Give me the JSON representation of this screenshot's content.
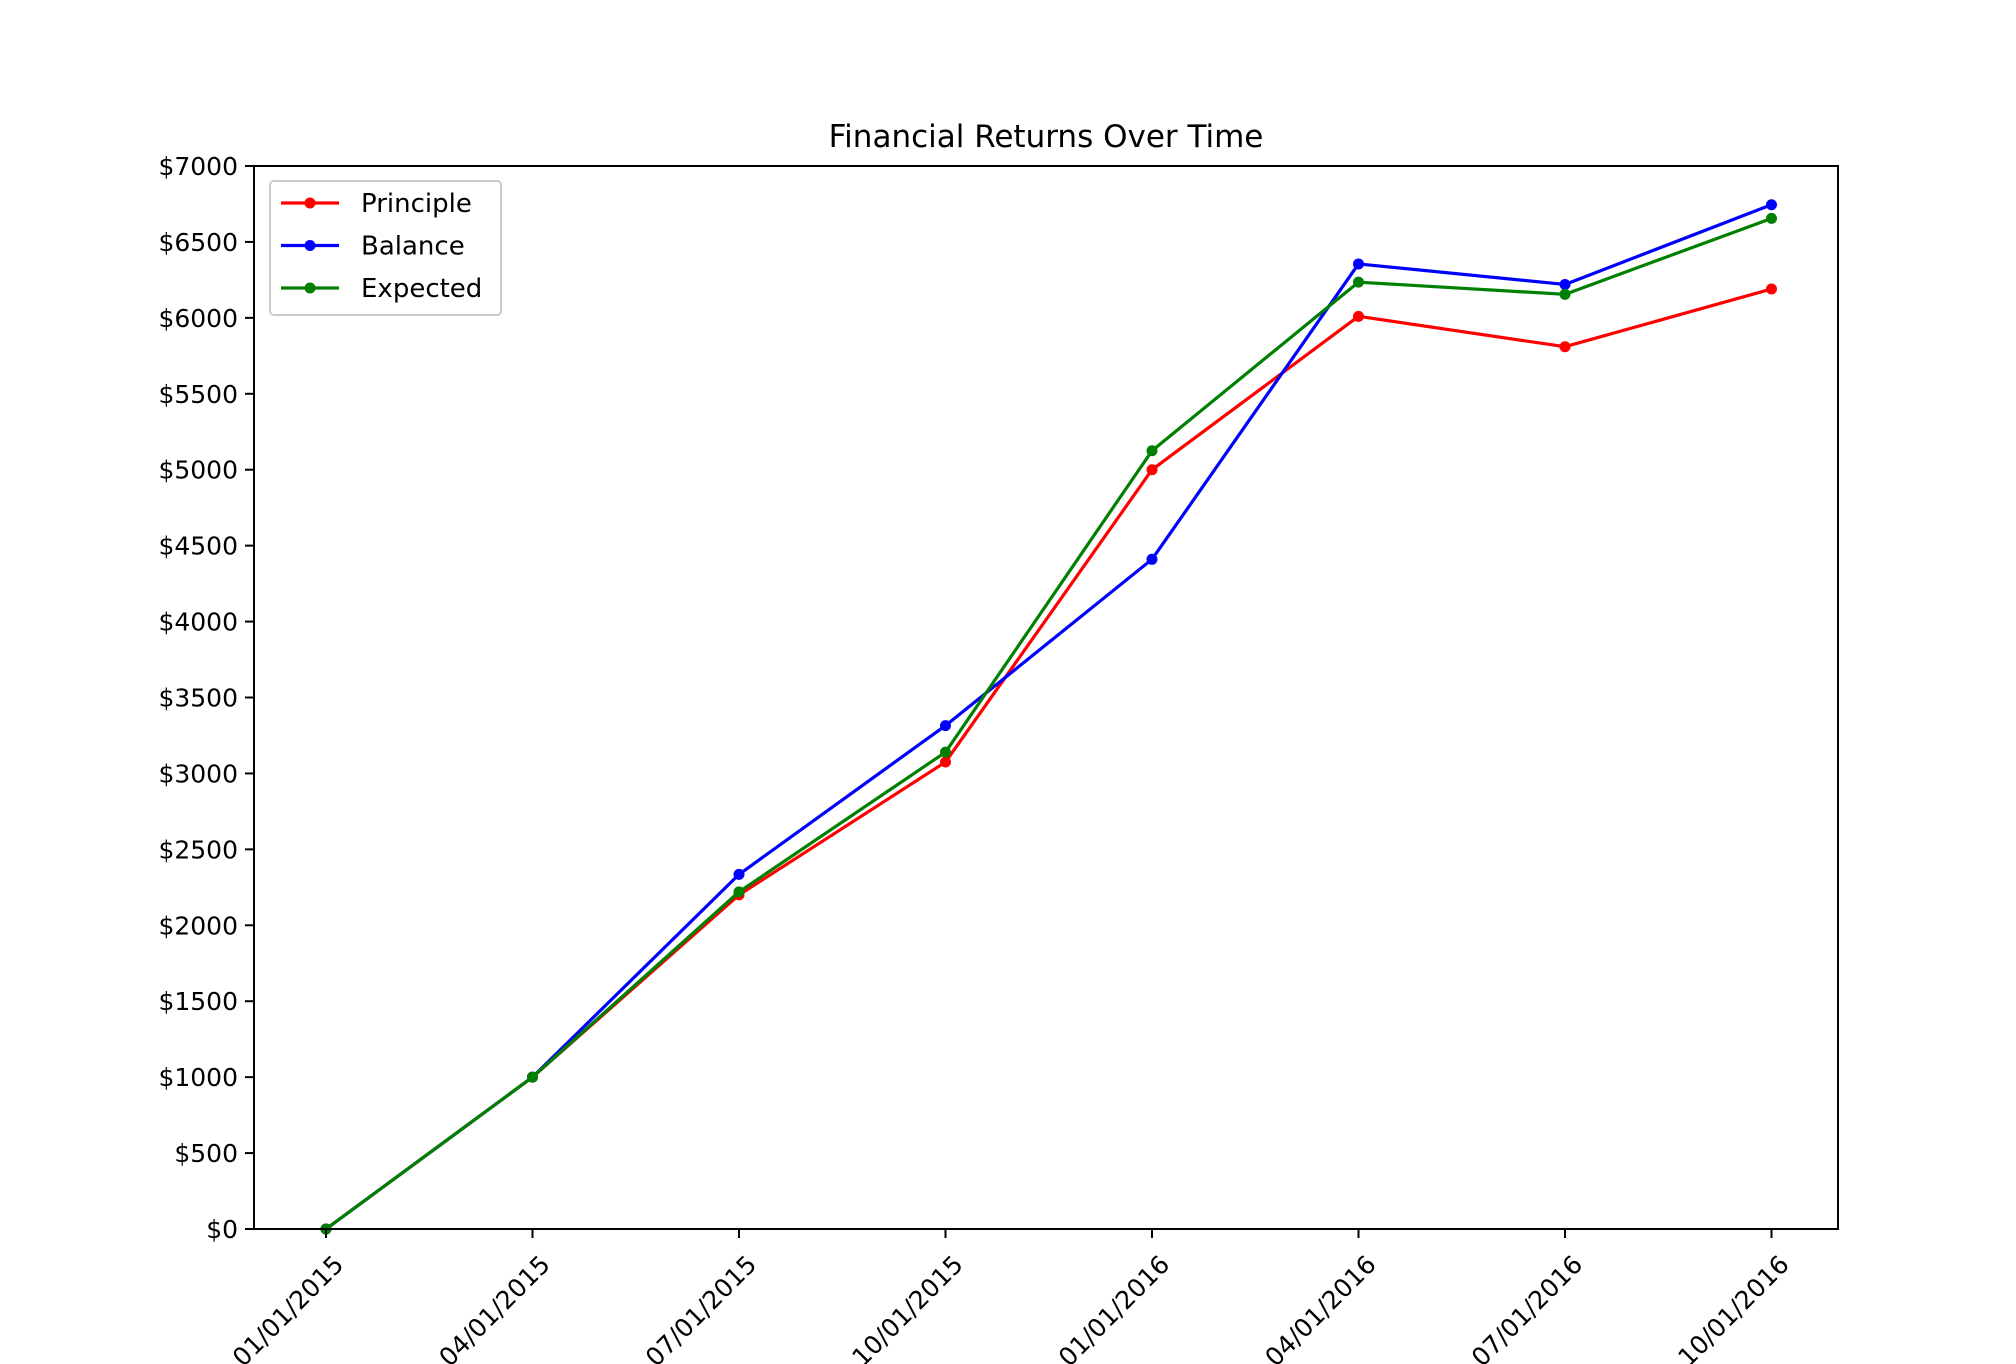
{
  "chart_data": {
    "type": "line",
    "title": "Financial Returns Over Time",
    "xlabel": "",
    "ylabel": "",
    "categories": [
      "01/01/2015",
      "04/01/2015",
      "07/01/2015",
      "10/01/2015",
      "01/01/2016",
      "04/01/2016",
      "07/01/2016",
      "10/01/2016"
    ],
    "x": [
      "2015-01-01",
      "2015-04-01",
      "2015-07-01",
      "2015-10-01",
      "2016-01-01",
      "2016-04-01",
      "2016-07-01",
      "2016-10-01"
    ],
    "ylim": [
      0,
      7000
    ],
    "yticks": [
      0,
      500,
      1000,
      1500,
      2000,
      2500,
      3000,
      3500,
      4000,
      4500,
      5000,
      5500,
      6000,
      6500,
      7000
    ],
    "ytick_labels": [
      "$0",
      "$500",
      "$1000",
      "$1500",
      "$2000",
      "$2500",
      "$3000",
      "$3500",
      "$4000",
      "$4500",
      "$5000",
      "$5500",
      "$6000",
      "$6500",
      "$7000"
    ],
    "grid": false,
    "legend_position": "upper-left",
    "series": [
      {
        "name": "Principle",
        "color": "#ff0000",
        "values": [
          0,
          1000,
          2200,
          3075,
          5000,
          6010,
          5810,
          6190
        ]
      },
      {
        "name": "Balance",
        "color": "#0000ff",
        "values": [
          0,
          1000,
          2335,
          3315,
          4410,
          6355,
          6220,
          6745
        ]
      },
      {
        "name": "Expected",
        "color": "#008000",
        "values": [
          0,
          1000,
          2220,
          3140,
          5125,
          6235,
          6155,
          6655
        ]
      }
    ]
  }
}
